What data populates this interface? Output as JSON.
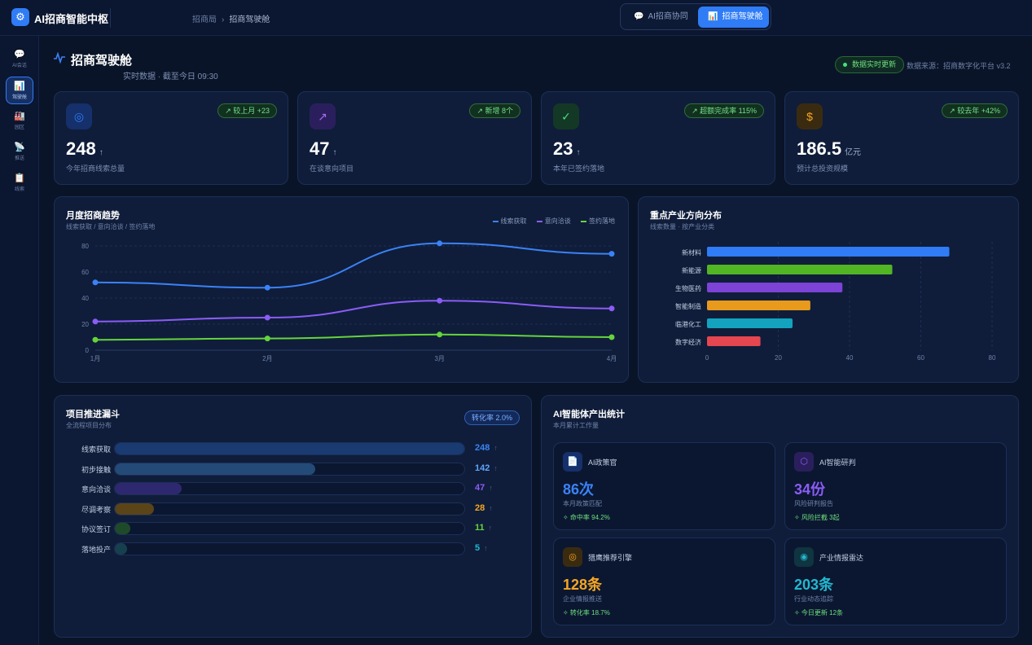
{
  "app": {
    "title": "AI招商智能中枢",
    "logo_glyph": "⚙"
  },
  "breadcrumb": {
    "parent": "招商局",
    "sep": "›",
    "current": "招商驾驶舱"
  },
  "tabs": [
    {
      "label": "AI招商协同",
      "icon": "chat-icon",
      "glyph": "💬",
      "active": false
    },
    {
      "label": "招商驾驶舱",
      "icon": "bar-chart-icon",
      "glyph": "📊",
      "active": true
    }
  ],
  "sidebar": [
    {
      "label": "AI会话",
      "icon": "chat-icon",
      "glyph": "💬",
      "active": false
    },
    {
      "label": "驾驶舱",
      "icon": "dashboard-icon",
      "glyph": "📊",
      "active": true
    },
    {
      "label": "园区",
      "icon": "factory-icon",
      "glyph": "🏭",
      "active": false
    },
    {
      "label": "推送",
      "icon": "satellite-icon",
      "glyph": "📡",
      "active": false
    },
    {
      "label": "线索",
      "icon": "clipboard-icon",
      "glyph": "📋",
      "active": false
    }
  ],
  "header": {
    "title": "招商驾驶舱",
    "subtitle": "实时数据 · 截至今日 09:30",
    "live_label": "数据实时更新",
    "source": "数据来源：招商数字化平台 v3.2"
  },
  "kpis": [
    {
      "value": "248",
      "unit": "",
      "arrow": "↑",
      "label": "今年招商线索总量",
      "badge": "↗ 较上月 +23",
      "icon": "target-icon",
      "glyph": "◎",
      "color": "#2f7cf6",
      "bg": "#15306a"
    },
    {
      "value": "47",
      "unit": "",
      "arrow": "↑",
      "label": "在谈意向项目",
      "badge": "↗ 新增 8个",
      "icon": "trend-icon",
      "glyph": "↗",
      "color": "#a66cf5",
      "bg": "#2a1f5c"
    },
    {
      "value": "23",
      "unit": "",
      "arrow": "↑",
      "label": "本年已签约落地",
      "badge": "↗ 超额完成率 115%",
      "icon": "check-circle-icon",
      "glyph": "✓",
      "color": "#4ade80",
      "bg": "#143826"
    },
    {
      "value": "186.5",
      "unit": "亿元",
      "arrow": "",
      "label": "预计总投资规模",
      "badge": "↗ 较去年 +42%",
      "icon": "dollar-icon",
      "glyph": "$",
      "color": "#f5a623",
      "bg": "#3a2b10"
    }
  ],
  "trend": {
    "title": "月度招商趋势",
    "subtitle": "线索获取 / 意向洽谈 / 签约落地",
    "chart_data": {
      "type": "line",
      "x": [
        "1月",
        "2月",
        "3月",
        "4月"
      ],
      "series": [
        {
          "name": "线索获取",
          "color": "#3b82f6",
          "values": [
            52,
            48,
            82,
            74
          ]
        },
        {
          "name": "意向洽谈",
          "color": "#8b5cf6",
          "values": [
            22,
            25,
            38,
            32
          ]
        },
        {
          "name": "签约落地",
          "color": "#65d43c",
          "values": [
            8,
            9,
            12,
            10
          ]
        }
      ],
      "y_ticks": [
        "0",
        "20",
        "40",
        "60",
        "80"
      ],
      "ylim": [
        0,
        85
      ],
      "grid": true,
      "legend": "top-right"
    }
  },
  "industry": {
    "title": "重点产业方向分布",
    "subtitle": "线索数量 · 按产业分类",
    "chart_data": {
      "type": "bar",
      "orientation": "horizontal",
      "categories": [
        "新材料",
        "新能源",
        "生物医药",
        "智能制造",
        "临港化工",
        "数字经济"
      ],
      "values": [
        68,
        52,
        38,
        29,
        24,
        15
      ],
      "colors": [
        "#2f7cf6",
        "#52b523",
        "#7c43d6",
        "#e89a1c",
        "#13a3bf",
        "#e5464f"
      ],
      "x_ticks": [
        "0",
        "20",
        "40",
        "60",
        "80"
      ],
      "xlim": [
        0,
        80
      ]
    }
  },
  "funnel": {
    "title": "项目推进漏斗",
    "subtitle": "全流程项目分布",
    "badge": "转化率 2.0%",
    "rows": [
      {
        "label": "线索获取",
        "value": "248",
        "fraction": 1.0,
        "arrow": "↑",
        "color": "#3b82f6",
        "fill": "#1a3a72"
      },
      {
        "label": "初步接触",
        "value": "142",
        "fraction": 0.573,
        "arrow": "↑",
        "color": "#60a5fa",
        "fill": "#244a78"
      },
      {
        "label": "意向洽谈",
        "value": "47",
        "fraction": 0.19,
        "arrow": "↑",
        "color": "#8b5cf6",
        "fill": "#2e2870"
      },
      {
        "label": "尽调考察",
        "value": "28",
        "fraction": 0.113,
        "arrow": "↑",
        "color": "#f5a623",
        "fill": "#5a4418"
      },
      {
        "label": "协议签订",
        "value": "11",
        "fraction": 0.044,
        "arrow": "↑",
        "color": "#65d43c",
        "fill": "#1f4a2a"
      },
      {
        "label": "落地投产",
        "value": "5",
        "fraction": 0.02,
        "arrow": "↑",
        "color": "#22b8cf",
        "fill": "#17404e"
      }
    ]
  },
  "ai": {
    "title": "AI智能体产出统计",
    "subtitle": "本月累计工作量",
    "cards": [
      {
        "name": "AI政策官",
        "value": "86次",
        "label": "本月政策匹配",
        "stat": "✧ 命中率 94.2%",
        "icon": "document-icon",
        "glyph": "📄",
        "color": "#3b82f6",
        "bg": "#15306a"
      },
      {
        "name": "AI智能研判",
        "value": "34份",
        "label": "风险研判报告",
        "stat": "✧ 风险拦截 3起",
        "icon": "shield-icon",
        "glyph": "⬡",
        "color": "#8b5cf6",
        "bg": "#2a1f5c"
      },
      {
        "name": "猎鹰推荐引擎",
        "value": "128条",
        "label": "企业情报推送",
        "stat": "✧ 转化率 18.7%",
        "icon": "target-icon",
        "glyph": "◎",
        "color": "#f5a623",
        "bg": "#3a2b10"
      },
      {
        "name": "产业情报雷达",
        "value": "203条",
        "label": "行业动态追踪",
        "stat": "✧ 今日更新 12条",
        "icon": "radar-icon",
        "glyph": "◉",
        "color": "#22b8cf",
        "bg": "#0f3540"
      }
    ]
  }
}
